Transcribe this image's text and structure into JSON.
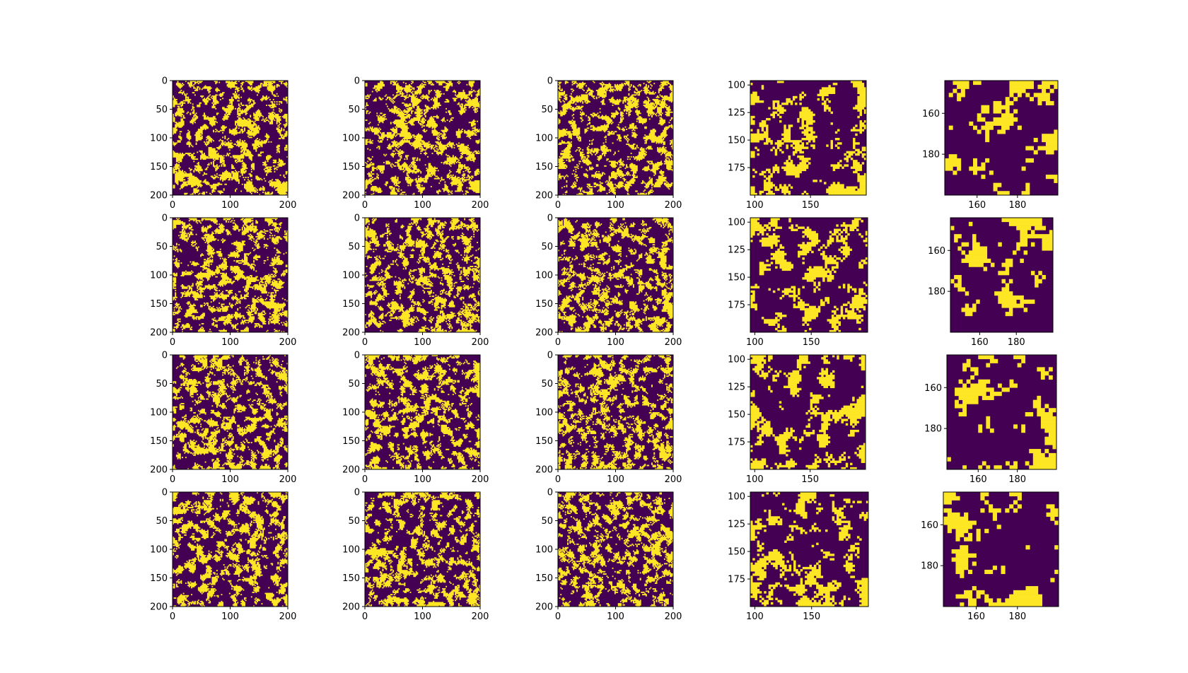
{
  "colors": {
    "background": "#440154",
    "foreground": "#fde725",
    "frame": "#000000"
  },
  "chart_data": {
    "type": "heatmap",
    "layout": "4x5 grid",
    "grid": false,
    "colormap": "viridis (binary: purple / yellow)",
    "panel_types": {
      "full": {
        "xlim": [
          0,
          200
        ],
        "ylim": [
          200,
          0
        ],
        "xticks": [
          "0",
          "100",
          "200"
        ],
        "yticks": [
          "0",
          "50",
          "100",
          "150",
          "200"
        ],
        "grid_cells": 100,
        "fill": 0.32,
        "blob": 3
      },
      "zoom": {
        "xlim": [
          96,
          200
        ],
        "ylim": [
          200,
          96
        ],
        "xticks": [
          "100",
          "150"
        ],
        "yticks": [
          "100",
          "125",
          "150",
          "175"
        ],
        "grid_cells": 52,
        "fill": 0.28,
        "blob": 4
      },
      "closeup": {
        "xlim": [
          144,
          200
        ],
        "ylim": [
          200,
          144
        ],
        "xticks": [
          "160",
          "180"
        ],
        "yticks": [
          "160",
          "180"
        ],
        "grid_cells": 28,
        "fill": 0.22,
        "blob": 4
      }
    },
    "rows": [
      {
        "panels": [
          "full",
          "full",
          "full",
          "zoom",
          "closeup"
        ]
      },
      {
        "panels": [
          "full",
          "full",
          "full",
          "zoom",
          "closeup"
        ]
      },
      {
        "panels": [
          "full",
          "full",
          "full",
          "zoom",
          "closeup"
        ]
      },
      {
        "panels": [
          "full",
          "full",
          "full",
          "zoom",
          "closeup"
        ]
      }
    ]
  }
}
